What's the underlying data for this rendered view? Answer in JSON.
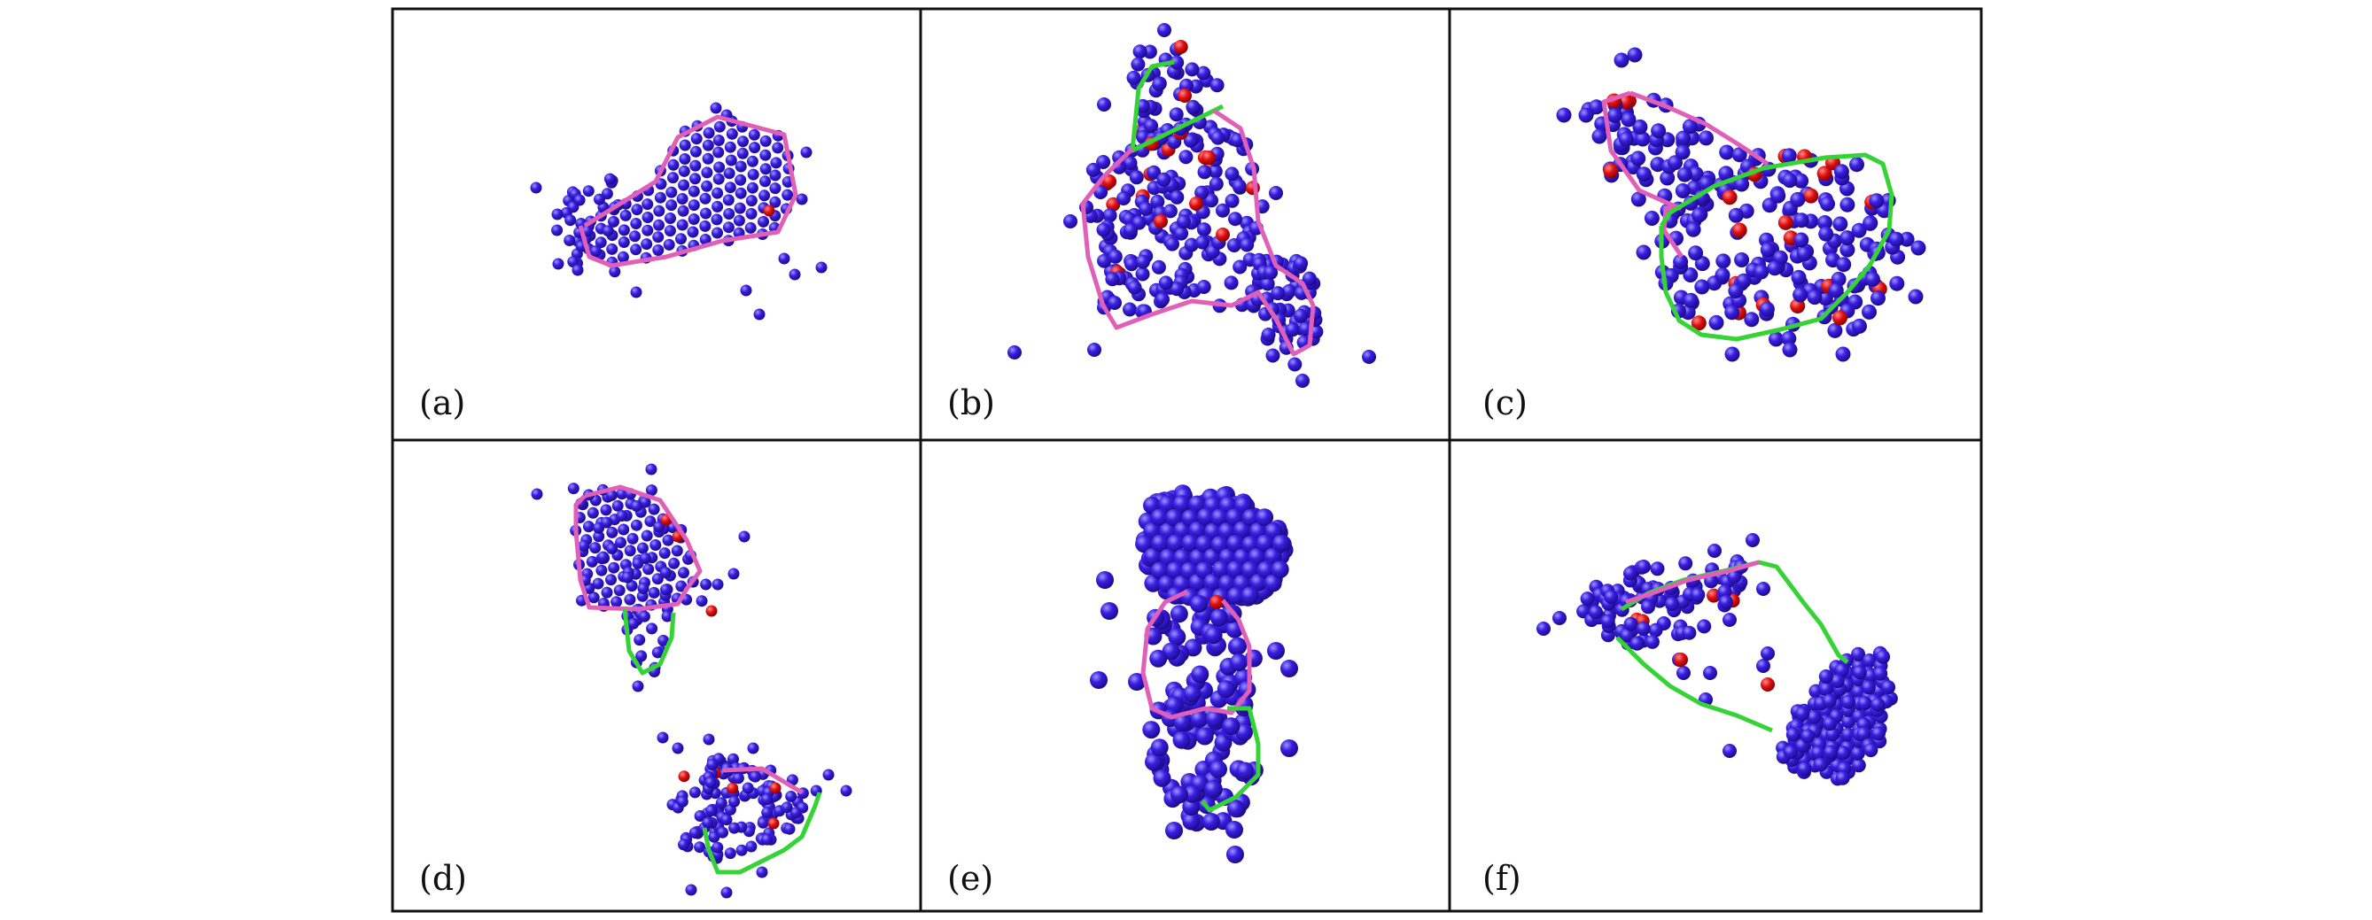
{
  "figure": {
    "colors": {
      "background": "#ffffff",
      "frame": "#111111",
      "particle": "#2e10cc",
      "particle_highlight": "#9b95ff",
      "defect": "#e01010",
      "boundary_magenta": "#e060b8",
      "boundary_green": "#35d335"
    },
    "panels": [
      {
        "label": "(a)"
      },
      {
        "label": "(b)"
      },
      {
        "label": "(c)"
      },
      {
        "label": "(d)"
      },
      {
        "label": "(e)"
      },
      {
        "label": "(f)"
      }
    ]
  }
}
